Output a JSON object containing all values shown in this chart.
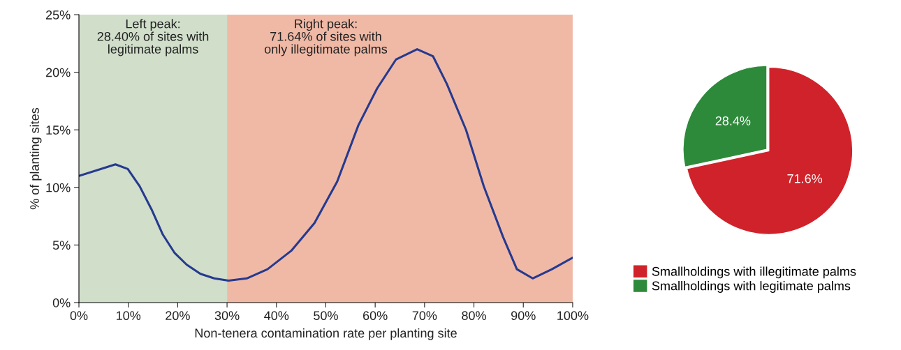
{
  "chart_data": [
    {
      "type": "line",
      "xlabel": "Non-tenera contamination rate per planting site",
      "ylabel": "% of planting sites",
      "series": [
        {
          "color": "#253a8f",
          "x": [
            0,
            7.4,
            9.9,
            12.3,
            14.7,
            17.0,
            19.4,
            21.8,
            24.6,
            27.4,
            30.3,
            34.0,
            38.2,
            43.0,
            47.7,
            52.3,
            56.6,
            60.4,
            64.2,
            68.5,
            71.7,
            74.5,
            78.4,
            82.0,
            85.9,
            88.7,
            91.9,
            95.8,
            100
          ],
          "values": [
            11.0,
            12.0,
            11.6,
            10.1,
            8.1,
            5.9,
            4.3,
            3.3,
            2.5,
            2.1,
            1.9,
            2.1,
            2.9,
            4.5,
            6.9,
            10.5,
            15.4,
            18.6,
            21.1,
            22.0,
            21.4,
            19.0,
            15.0,
            10.1,
            5.7,
            2.9,
            2.1,
            2.9,
            3.9
          ]
        }
      ],
      "xlim": [
        0,
        100
      ],
      "ylim": [
        0,
        25
      ],
      "xticks": [
        {
          "value": 0,
          "label": "0%"
        },
        {
          "value": 10,
          "label": "10%"
        },
        {
          "value": 20,
          "label": "20%"
        },
        {
          "value": 30,
          "label": "30%"
        },
        {
          "value": 40,
          "label": "40%"
        },
        {
          "value": 50,
          "label": "50%"
        },
        {
          "value": 60,
          "label": "60%"
        },
        {
          "value": 70,
          "label": "70%"
        },
        {
          "value": 80,
          "label": "80%"
        },
        {
          "value": 90,
          "label": "90%"
        },
        {
          "value": 100,
          "label": "100%"
        }
      ],
      "yticks": [
        {
          "value": 0,
          "label": "0%"
        },
        {
          "value": 5,
          "label": "5%"
        },
        {
          "value": 10,
          "label": "10%"
        },
        {
          "value": 15,
          "label": "15%"
        },
        {
          "value": 20,
          "label": "20%"
        },
        {
          "value": 25,
          "label": "25%"
        }
      ],
      "bands": [
        {
          "axis": "x",
          "from": 0,
          "to": 30,
          "label": "Left peak:\n28.40% of sites with\nlegitimate palms",
          "color": "#d0deca"
        },
        {
          "axis": "x",
          "from": 30,
          "to": 100,
          "label": "Right peak:\n71.64% of sites with\nonly illegitimate palms",
          "color": "#f0b9a6"
        }
      ],
      "grid": false,
      "legend": false,
      "marker": "none",
      "line_style": "solid"
    },
    {
      "type": "pie",
      "categories": [
        "Smallholdings with illegitimate palms",
        "Smallholdings with legitimate palms"
      ],
      "values": [
        71.6,
        28.4
      ],
      "colors": [
        "#d0222a",
        "#2d8a3a"
      ],
      "value_labels": [
        "71.6%",
        "28.4%"
      ],
      "legend": "bottom"
    }
  ]
}
